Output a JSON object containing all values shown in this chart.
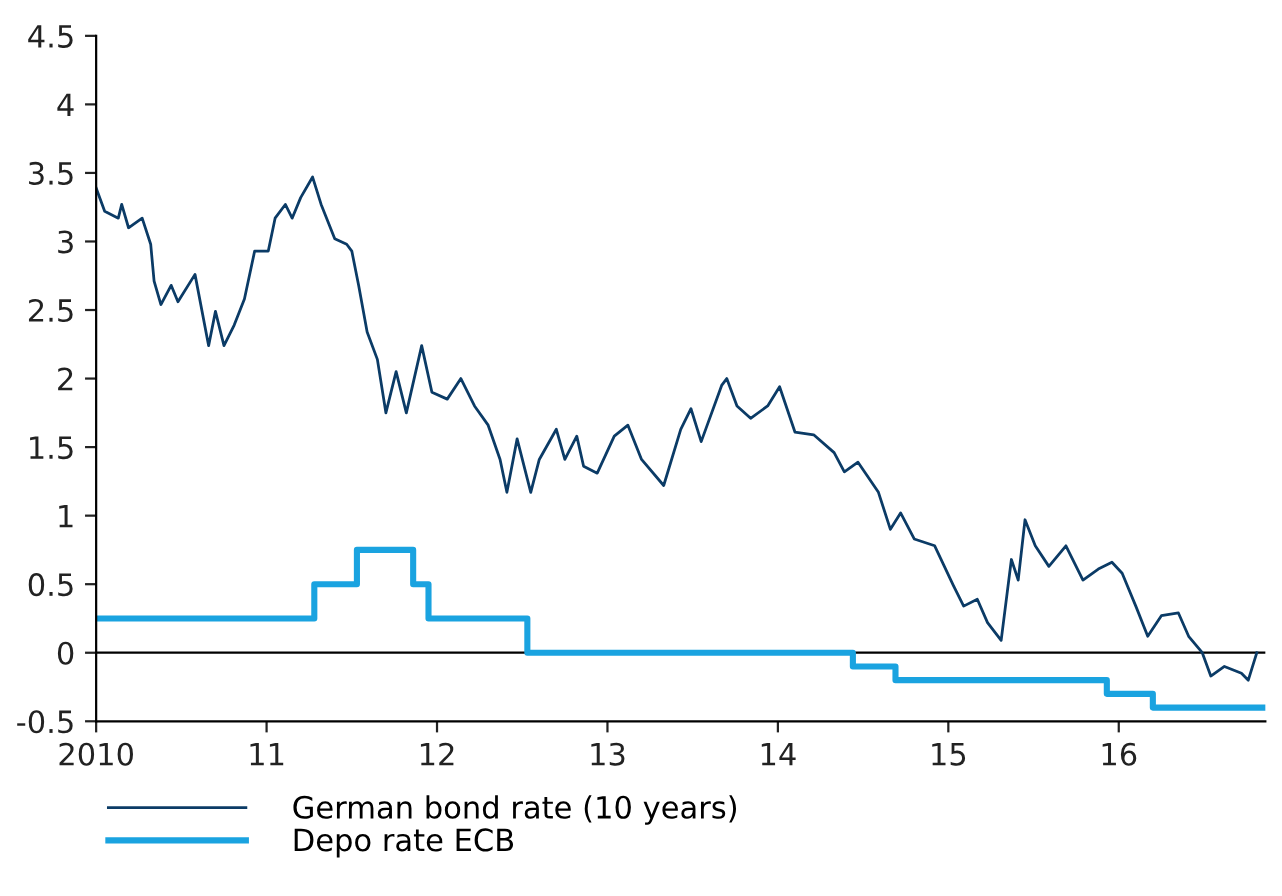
{
  "chart_data": {
    "type": "line",
    "xlim": [
      2010,
      2016.86
    ],
    "xticks": [
      {
        "value": 2010,
        "label": "2010"
      },
      {
        "value": 2011,
        "label": "11"
      },
      {
        "value": 2012,
        "label": "12"
      },
      {
        "value": 2013,
        "label": "13"
      },
      {
        "value": 2014,
        "label": "14"
      },
      {
        "value": 2015,
        "label": "15"
      },
      {
        "value": 2016,
        "label": "16"
      }
    ],
    "ylim": [
      -0.5,
      4.5
    ],
    "yticks": [
      -0.5,
      0,
      0.5,
      1,
      1.5,
      2,
      2.5,
      3,
      3.5,
      4,
      4.5
    ],
    "grid": false,
    "legend": "bottom",
    "ref_lines": [
      {
        "axis": "y",
        "value": 0,
        "color": "#000000"
      }
    ],
    "series": [
      {
        "name": "German bond rate (10 years)",
        "color": "#0b3b66",
        "x": [
          2010.0,
          2010.05,
          2010.13,
          2010.15,
          2010.19,
          2010.27,
          2010.32,
          2010.34,
          2010.38,
          2010.44,
          2010.48,
          2010.58,
          2010.66,
          2010.7,
          2010.75,
          2010.81,
          2010.87,
          2010.93,
          2011.01,
          2011.05,
          2011.11,
          2011.15,
          2011.2,
          2011.27,
          2011.32,
          2011.4,
          2011.47,
          2011.5,
          2011.54,
          2011.59,
          2011.65,
          2011.7,
          2011.76,
          2011.82,
          2011.91,
          2011.97,
          2012.06,
          2012.14,
          2012.22,
          2012.3,
          2012.37,
          2012.41,
          2012.47,
          2012.55,
          2012.6,
          2012.7,
          2012.75,
          2012.82,
          2012.86,
          2012.94,
          2013.04,
          2013.12,
          2013.2,
          2013.33,
          2013.43,
          2013.49,
          2013.55,
          2013.67,
          2013.7,
          2013.76,
          2013.84,
          2013.94,
          2014.01,
          2014.1,
          2014.21,
          2014.33,
          2014.39,
          2014.47,
          2014.59,
          2014.66,
          2014.72,
          2014.8,
          2014.92,
          2015.03,
          2015.09,
          2015.17,
          2015.23,
          2015.31,
          2015.37,
          2015.41,
          2015.45,
          2015.51,
          2015.59,
          2015.69,
          2015.79,
          2015.88,
          2015.96,
          2016.02,
          2016.1,
          2016.17,
          2016.25,
          2016.35,
          2016.41,
          2016.49,
          2016.54,
          2016.62,
          2016.72,
          2016.76,
          2016.81
        ],
        "values": [
          3.39,
          3.22,
          3.17,
          3.27,
          3.1,
          3.17,
          2.98,
          2.71,
          2.54,
          2.68,
          2.56,
          2.76,
          2.24,
          2.49,
          2.24,
          2.39,
          2.58,
          2.93,
          2.93,
          3.17,
          3.27,
          3.17,
          3.32,
          3.47,
          3.27,
          3.02,
          2.98,
          2.93,
          2.68,
          2.34,
          2.14,
          1.75,
          2.05,
          1.75,
          2.24,
          1.9,
          1.85,
          2.0,
          1.8,
          1.66,
          1.41,
          1.17,
          1.56,
          1.17,
          1.41,
          1.63,
          1.41,
          1.58,
          1.36,
          1.31,
          1.58,
          1.66,
          1.41,
          1.22,
          1.63,
          1.78,
          1.54,
          1.95,
          2.0,
          1.8,
          1.71,
          1.8,
          1.94,
          1.61,
          1.59,
          1.46,
          1.32,
          1.39,
          1.17,
          0.9,
          1.02,
          0.83,
          0.78,
          0.49,
          0.34,
          0.39,
          0.22,
          0.09,
          0.68,
          0.53,
          0.97,
          0.78,
          0.63,
          0.78,
          0.53,
          0.61,
          0.66,
          0.58,
          0.34,
          0.12,
          0.27,
          0.29,
          0.12,
          0.0,
          -0.17,
          -0.1,
          -0.15,
          -0.2,
          0.0
        ]
      },
      {
        "name": "Depo rate ECB",
        "type": "step",
        "color": "#1aa3e0",
        "x": [
          2010.0,
          2011.28,
          2011.53,
          2011.86,
          2011.95,
          2012.53,
          2014.44,
          2014.69,
          2015.93,
          2016.2,
          2016.86
        ],
        "values": [
          0.25,
          0.5,
          0.75,
          0.5,
          0.25,
          0,
          -0.1,
          -0.2,
          -0.3,
          -0.4,
          -0.4
        ]
      }
    ]
  }
}
